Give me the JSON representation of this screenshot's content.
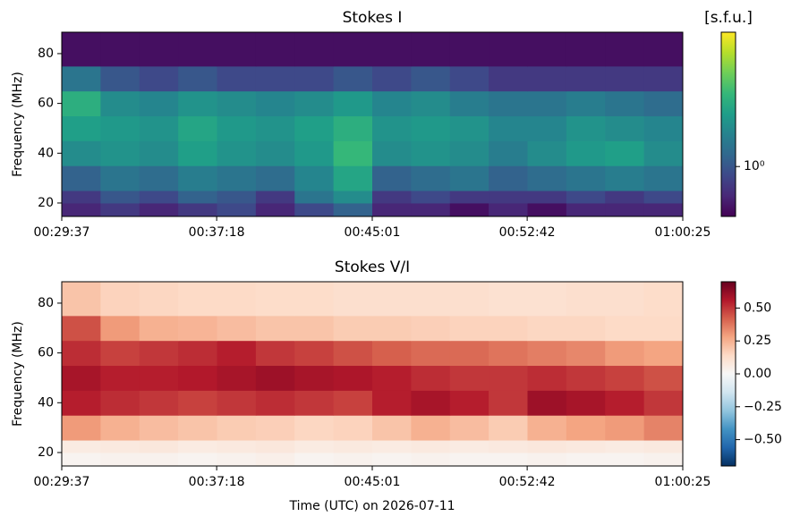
{
  "chart_data": [
    {
      "type": "heatmap",
      "title": "Stokes I",
      "ylabel": "Frequency (MHz)",
      "xlim": [
        1777,
        3625
      ],
      "xticks": [
        {
          "value": 1777,
          "label": "00:29:37"
        },
        {
          "value": 2238,
          "label": "00:37:18"
        },
        {
          "value": 2701,
          "label": "00:45:01"
        },
        {
          "value": 3162,
          "label": "00:52:42"
        },
        {
          "value": 3625,
          "label": "01:00:25"
        }
      ],
      "ylim": [
        14.6,
        88.6
      ],
      "yticks": [
        20,
        40,
        60,
        80
      ],
      "xbins": [
        1777,
        1892.5,
        2008,
        2123.5,
        2239,
        2354.5,
        2470,
        2585.5,
        2701,
        2816.5,
        2932,
        3047.5,
        3163,
        3278.5,
        3394,
        3509.5,
        3625
      ],
      "ybins": [
        14.6,
        20,
        25,
        35,
        45,
        55,
        65,
        75,
        88.6
      ],
      "z": [
        [
          0.7,
          0.8,
          0.7,
          0.8,
          0.9,
          0.7,
          0.9,
          1.1,
          0.7,
          0.7,
          0.6,
          0.7,
          0.6,
          0.7,
          0.7,
          0.7
        ],
        [
          0.8,
          1.0,
          0.9,
          1.1,
          1.0,
          0.8,
          1.3,
          1.6,
          0.8,
          0.9,
          0.8,
          0.8,
          0.8,
          0.9,
          0.8,
          0.9
        ],
        [
          1.1,
          1.3,
          1.2,
          1.4,
          1.3,
          1.2,
          1.5,
          2.0,
          1.1,
          1.2,
          1.3,
          1.1,
          1.2,
          1.3,
          1.4,
          1.3
        ],
        [
          1.6,
          1.7,
          1.6,
          1.9,
          1.7,
          1.6,
          1.8,
          2.4,
          1.6,
          1.7,
          1.6,
          1.4,
          1.6,
          1.8,
          1.9,
          1.6
        ],
        [
          1.9,
          1.8,
          1.7,
          2.0,
          1.8,
          1.7,
          1.9,
          2.2,
          1.7,
          1.8,
          1.7,
          1.5,
          1.5,
          1.7,
          1.6,
          1.5
        ],
        [
          2.2,
          1.6,
          1.5,
          1.7,
          1.6,
          1.5,
          1.6,
          1.8,
          1.5,
          1.6,
          1.4,
          1.3,
          1.3,
          1.4,
          1.3,
          1.2
        ],
        [
          1.3,
          1.0,
          0.9,
          1.0,
          0.9,
          0.9,
          0.9,
          1.0,
          0.9,
          1.0,
          0.9,
          0.8,
          0.8,
          0.8,
          0.8,
          0.8
        ],
        [
          0.6,
          0.6,
          0.6,
          0.6,
          0.6,
          0.6,
          0.6,
          0.6,
          0.6,
          0.6,
          0.6,
          0.6,
          0.6,
          0.6,
          0.6,
          0.6
        ]
      ],
      "colormap": "viridis",
      "colorbar": {
        "label": "[s.f.u.]",
        "scale": "log",
        "lim": [
          0.55,
          5
        ],
        "ticks": [
          {
            "value": 1,
            "label": "10⁰"
          }
        ]
      }
    },
    {
      "type": "heatmap",
      "title": "Stokes V/I",
      "ylabel": "Frequency (MHz)",
      "xlabel": "Time (UTC) on 2026-07-11",
      "xlim": [
        1777,
        3625
      ],
      "xticks": [
        {
          "value": 1777,
          "label": "00:29:37"
        },
        {
          "value": 2238,
          "label": "00:37:18"
        },
        {
          "value": 2701,
          "label": "00:45:01"
        },
        {
          "value": 3162,
          "label": "00:52:42"
        },
        {
          "value": 3625,
          "label": "01:00:25"
        }
      ],
      "ylim": [
        14.6,
        88.6
      ],
      "yticks": [
        20,
        40,
        60,
        80
      ],
      "xbins": [
        1777,
        1892.5,
        2008,
        2123.5,
        2239,
        2354.5,
        2470,
        2585.5,
        2701,
        2816.5,
        2932,
        3047.5,
        3163,
        3278.5,
        3394,
        3509.5,
        3625
      ],
      "ybins": [
        14.6,
        20,
        25,
        35,
        45,
        55,
        65,
        75,
        88.6
      ],
      "z": [
        [
          0.02,
          0.03,
          0.03,
          0.02,
          0.03,
          0.04,
          0.02,
          0.03,
          0.02,
          0.03,
          0.02,
          0.02,
          0.03,
          0.02,
          0.02,
          0.03
        ],
        [
          0.06,
          0.07,
          0.08,
          0.06,
          0.07,
          0.08,
          0.06,
          0.07,
          0.06,
          0.07,
          0.06,
          0.07,
          0.08,
          0.07,
          0.06,
          0.07
        ],
        [
          0.3,
          0.25,
          0.22,
          0.2,
          0.18,
          0.17,
          0.15,
          0.16,
          0.2,
          0.25,
          0.22,
          0.18,
          0.25,
          0.28,
          0.3,
          0.35
        ],
        [
          0.55,
          0.52,
          0.5,
          0.48,
          0.5,
          0.52,
          0.5,
          0.48,
          0.55,
          0.58,
          0.55,
          0.5,
          0.6,
          0.58,
          0.55,
          0.5
        ],
        [
          0.58,
          0.55,
          0.55,
          0.56,
          0.58,
          0.6,
          0.58,
          0.57,
          0.55,
          0.52,
          0.5,
          0.5,
          0.52,
          0.5,
          0.48,
          0.45
        ],
        [
          0.52,
          0.48,
          0.5,
          0.52,
          0.55,
          0.5,
          0.48,
          0.45,
          0.42,
          0.4,
          0.4,
          0.38,
          0.36,
          0.34,
          0.3,
          0.28
        ],
        [
          0.45,
          0.3,
          0.25,
          0.24,
          0.22,
          0.2,
          0.2,
          0.18,
          0.18,
          0.17,
          0.16,
          0.16,
          0.15,
          0.15,
          0.14,
          0.14
        ],
        [
          0.2,
          0.16,
          0.15,
          0.14,
          0.14,
          0.13,
          0.13,
          0.12,
          0.12,
          0.12,
          0.12,
          0.11,
          0.11,
          0.12,
          0.12,
          0.13
        ]
      ],
      "colormap": "RdBu_r",
      "colorbar": {
        "scale": "linear",
        "lim": [
          -0.7,
          0.7
        ],
        "ticks": [
          {
            "value": -0.5,
            "label": "−0.50"
          },
          {
            "value": -0.25,
            "label": "−0.25"
          },
          {
            "value": 0,
            "label": "0.00"
          },
          0.25,
          {
            "value": 0.5,
            "label": "0.50"
          }
        ]
      }
    }
  ]
}
